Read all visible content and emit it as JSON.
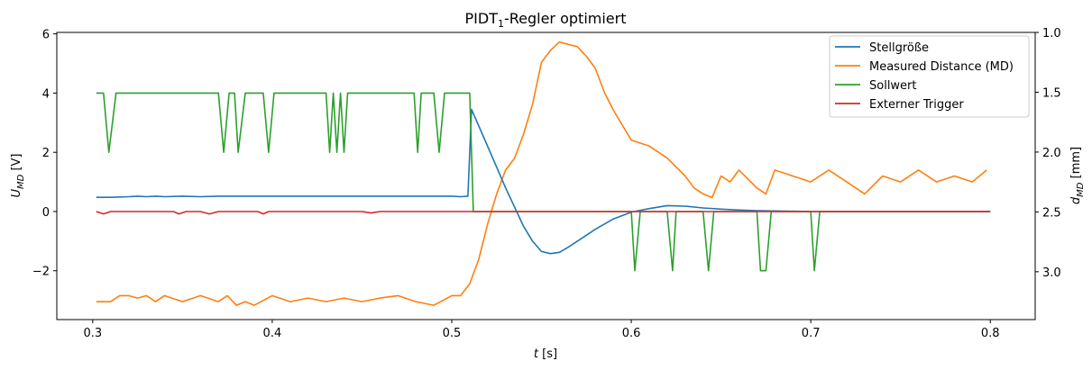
{
  "chart_data": {
    "type": "line",
    "title": "PIDT",
    "title_subscript": "1",
    "title_suffix": "-Regler optimiert",
    "xlabel_main": "t",
    "xlabel_unit": "[s]",
    "ylabel_left_main": "U",
    "ylabel_left_sub": "MD",
    "ylabel_left_unit": "[V]",
    "ylabel_right_main": "d",
    "ylabel_right_sub": "MD",
    "ylabel_right_unit": "[mm]",
    "xlim": [
      0.28,
      0.825
    ],
    "ylim_left": [
      -3.65,
      6.05
    ],
    "ylim_right": [
      3.4,
      1.0
    ],
    "xticks": [
      "0.3",
      "0.4",
      "0.5",
      "0.6",
      "0.7",
      "0.8"
    ],
    "yticks_left": [
      "−2",
      "0",
      "2",
      "4",
      "6"
    ],
    "yticks_right": [
      "1.0",
      "1.5",
      "2.0",
      "2.5",
      "3.0"
    ],
    "legend_position": "top-right",
    "grid": false,
    "series": [
      {
        "name": "Stellgröße",
        "axis": "left",
        "color": "#1f77b4",
        "x": [
          0.302,
          0.31,
          0.32,
          0.325,
          0.33,
          0.335,
          0.34,
          0.35,
          0.36,
          0.37,
          0.38,
          0.4,
          0.42,
          0.44,
          0.46,
          0.48,
          0.5,
          0.505,
          0.509,
          0.511,
          0.515,
          0.52,
          0.53,
          0.54,
          0.545,
          0.55,
          0.555,
          0.56,
          0.565,
          0.57,
          0.58,
          0.59,
          0.6,
          0.61,
          0.62,
          0.63,
          0.64,
          0.65,
          0.66,
          0.67,
          0.7,
          0.75,
          0.8
        ],
        "y": [
          0.48,
          0.48,
          0.5,
          0.52,
          0.5,
          0.52,
          0.5,
          0.52,
          0.5,
          0.52,
          0.52,
          0.52,
          0.52,
          0.52,
          0.52,
          0.52,
          0.52,
          0.5,
          0.52,
          3.45,
          2.9,
          2.2,
          0.8,
          -0.5,
          -1.0,
          -1.35,
          -1.42,
          -1.38,
          -1.2,
          -1.0,
          -0.6,
          -0.25,
          -0.02,
          0.1,
          0.2,
          0.18,
          0.12,
          0.08,
          0.05,
          0.03,
          0.0,
          0.0,
          0.0
        ]
      },
      {
        "name": "Measured Distance (MD)",
        "axis": "right",
        "color": "#ff7f0e",
        "x": [
          0.302,
          0.31,
          0.315,
          0.32,
          0.325,
          0.33,
          0.335,
          0.34,
          0.35,
          0.36,
          0.37,
          0.375,
          0.38,
          0.385,
          0.39,
          0.4,
          0.41,
          0.42,
          0.43,
          0.44,
          0.45,
          0.46,
          0.47,
          0.48,
          0.49,
          0.5,
          0.505,
          0.51,
          0.515,
          0.52,
          0.525,
          0.53,
          0.535,
          0.54,
          0.545,
          0.55,
          0.555,
          0.56,
          0.565,
          0.57,
          0.575,
          0.58,
          0.585,
          0.59,
          0.6,
          0.61,
          0.62,
          0.63,
          0.635,
          0.64,
          0.645,
          0.65,
          0.655,
          0.66,
          0.67,
          0.675,
          0.68,
          0.69,
          0.7,
          0.71,
          0.72,
          0.73,
          0.74,
          0.75,
          0.76,
          0.77,
          0.78,
          0.79,
          0.798
        ],
        "y": [
          3.25,
          3.25,
          3.2,
          3.2,
          3.22,
          3.2,
          3.25,
          3.2,
          3.25,
          3.2,
          3.25,
          3.2,
          3.28,
          3.25,
          3.28,
          3.2,
          3.25,
          3.22,
          3.25,
          3.22,
          3.25,
          3.22,
          3.2,
          3.25,
          3.28,
          3.2,
          3.2,
          3.1,
          2.9,
          2.6,
          2.35,
          2.15,
          2.05,
          1.85,
          1.6,
          1.25,
          1.15,
          1.08,
          1.1,
          1.12,
          1.2,
          1.3,
          1.5,
          1.65,
          1.9,
          1.95,
          2.05,
          2.2,
          2.3,
          2.35,
          2.38,
          2.2,
          2.25,
          2.15,
          2.3,
          2.35,
          2.15,
          2.2,
          2.25,
          2.15,
          2.25,
          2.35,
          2.2,
          2.25,
          2.15,
          2.25,
          2.2,
          2.25,
          2.15
        ]
      },
      {
        "name": "Sollwert",
        "axis": "left",
        "color": "#2ca02c",
        "x": [
          0.302,
          0.306,
          0.309,
          0.313,
          0.37,
          0.373,
          0.376,
          0.379,
          0.381,
          0.385,
          0.389,
          0.392,
          0.395,
          0.398,
          0.401,
          0.43,
          0.432,
          0.434,
          0.436,
          0.438,
          0.44,
          0.442,
          0.445,
          0.479,
          0.481,
          0.483,
          0.485,
          0.49,
          0.493,
          0.496,
          0.51,
          0.512,
          0.6,
          0.602,
          0.605,
          0.608,
          0.61,
          0.613,
          0.615,
          0.618,
          0.62,
          0.623,
          0.625,
          0.627,
          0.63,
          0.64,
          0.643,
          0.646,
          0.65,
          0.67,
          0.672,
          0.675,
          0.678,
          0.68,
          0.7,
          0.702,
          0.705,
          0.8
        ],
        "y": [
          4.0,
          4.0,
          2.0,
          4.0,
          4.0,
          2.0,
          4.0,
          4.0,
          2.0,
          4.0,
          4.0,
          4.0,
          4.0,
          2.0,
          4.0,
          4.0,
          2.0,
          4.0,
          2.0,
          4.0,
          2.0,
          4.0,
          4.0,
          4.0,
          2.0,
          4.0,
          4.0,
          4.0,
          2.0,
          4.0,
          4.0,
          0.0,
          0.0,
          -2.0,
          0.0,
          0.0,
          0.0,
          0.0,
          0.0,
          0.0,
          0.0,
          -2.0,
          0.0,
          0.0,
          0.0,
          0.0,
          -2.0,
          0.0,
          0.0,
          0.0,
          -2.0,
          -2.0,
          0.0,
          0.0,
          0.0,
          -2.0,
          0.0,
          0.0
        ]
      },
      {
        "name": "Externer Trigger",
        "axis": "left",
        "color": "#d62728",
        "x": [
          0.302,
          0.306,
          0.31,
          0.345,
          0.348,
          0.352,
          0.36,
          0.365,
          0.37,
          0.392,
          0.395,
          0.398,
          0.45,
          0.455,
          0.46,
          0.51,
          0.52,
          0.8
        ],
        "y": [
          0.0,
          -0.08,
          0.0,
          0.0,
          -0.08,
          0.0,
          0.0,
          -0.08,
          0.0,
          0.0,
          -0.08,
          0.0,
          0.0,
          -0.05,
          0.0,
          0.0,
          0.0,
          0.0
        ]
      }
    ]
  }
}
